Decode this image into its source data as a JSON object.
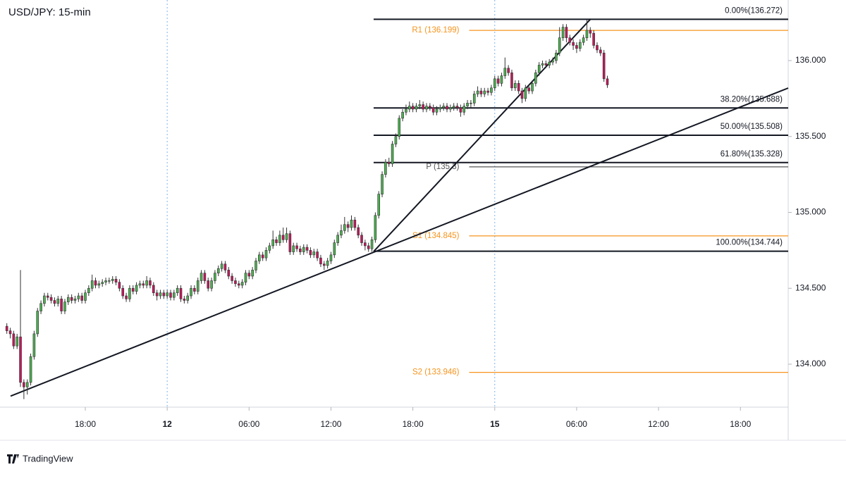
{
  "chart_data": {
    "type": "candlestick",
    "title": "USD/JPY: 15-min",
    "footer": "TradingView",
    "up_color": "#4caf50",
    "down_color": "#c2185b",
    "xlim": [
      -2,
      229
    ],
    "ylim": [
      133.717,
      136.399
    ],
    "xticks": [
      {
        "value": 23,
        "label": "18:00"
      },
      {
        "value": 47,
        "label": "12",
        "bold": true
      },
      {
        "value": 71,
        "label": "06:00"
      },
      {
        "value": 95,
        "label": "12:00"
      },
      {
        "value": 119,
        "label": "18:00"
      },
      {
        "value": 143,
        "label": "15",
        "bold": true
      },
      {
        "value": 167,
        "label": "06:00"
      },
      {
        "value": 191,
        "label": "12:00"
      },
      {
        "value": 215,
        "label": "18:00"
      }
    ],
    "yticks": [
      {
        "value": 134,
        "label": "134.000"
      },
      {
        "value": 134.5,
        "label": "134.500"
      },
      {
        "value": 135,
        "label": "135.000"
      },
      {
        "value": 135.5,
        "label": "135.500"
      },
      {
        "value": 136,
        "label": "136.000"
      }
    ],
    "ohlc": [
      [
        134.25,
        134.27,
        134.2,
        134.22
      ],
      [
        134.22,
        134.24,
        134.17,
        134.2
      ],
      [
        134.2,
        134.22,
        134.1,
        134.12
      ],
      [
        134.12,
        134.2,
        134.1,
        134.18
      ],
      [
        134.18,
        134.62,
        133.85,
        133.88
      ],
      [
        133.88,
        133.9,
        133.77,
        133.85
      ],
      [
        133.85,
        133.9,
        133.8,
        133.88
      ],
      [
        133.88,
        134.07,
        133.86,
        134.05
      ],
      [
        134.05,
        134.22,
        134.03,
        134.2
      ],
      [
        134.2,
        134.37,
        134.18,
        134.35
      ],
      [
        134.35,
        134.42,
        134.33,
        134.4
      ],
      [
        134.4,
        134.47,
        134.38,
        134.45
      ],
      [
        134.45,
        134.47,
        134.42,
        134.44
      ],
      [
        134.44,
        134.46,
        134.4,
        134.42
      ],
      [
        134.42,
        134.44,
        134.38,
        134.4
      ],
      [
        134.4,
        134.45,
        134.38,
        134.43
      ],
      [
        134.43,
        134.45,
        134.33,
        134.35
      ],
      [
        134.35,
        134.43,
        134.33,
        134.41
      ],
      [
        134.41,
        134.46,
        134.39,
        134.44
      ],
      [
        134.44,
        134.46,
        134.4,
        134.42
      ],
      [
        134.42,
        134.45,
        134.4,
        134.43
      ],
      [
        134.43,
        134.47,
        134.41,
        134.45
      ],
      [
        134.45,
        134.47,
        134.4,
        134.42
      ],
      [
        134.42,
        134.49,
        134.4,
        134.47
      ],
      [
        134.47,
        134.52,
        134.45,
        134.5
      ],
      [
        134.5,
        134.59,
        134.48,
        134.55
      ],
      [
        134.55,
        134.57,
        134.5,
        134.52
      ],
      [
        134.52,
        134.55,
        134.5,
        134.53
      ],
      [
        134.53,
        134.56,
        134.51,
        134.54
      ],
      [
        134.54,
        134.57,
        134.52,
        134.55
      ],
      [
        134.55,
        134.57,
        134.53,
        134.55
      ],
      [
        134.55,
        134.58,
        134.53,
        134.56
      ],
      [
        134.56,
        134.58,
        134.52,
        134.54
      ],
      [
        134.54,
        134.56,
        134.48,
        134.5
      ],
      [
        134.5,
        134.52,
        134.43,
        134.45
      ],
      [
        134.45,
        134.47,
        134.41,
        134.43
      ],
      [
        134.43,
        134.52,
        134.41,
        134.5
      ],
      [
        134.5,
        134.52,
        134.46,
        134.48
      ],
      [
        134.48,
        134.54,
        134.46,
        134.52
      ],
      [
        134.52,
        134.55,
        134.5,
        134.53
      ],
      [
        134.53,
        134.55,
        134.5,
        134.52
      ],
      [
        134.52,
        134.58,
        134.5,
        134.55
      ],
      [
        134.55,
        134.57,
        134.5,
        134.52
      ],
      [
        134.52,
        134.54,
        134.45,
        134.47
      ],
      [
        134.47,
        134.49,
        134.42,
        134.45
      ],
      [
        134.45,
        134.49,
        134.43,
        134.47
      ],
      [
        134.47,
        134.49,
        134.43,
        134.45
      ],
      [
        134.45,
        134.49,
        134.43,
        134.47
      ],
      [
        134.47,
        134.49,
        134.42,
        134.44
      ],
      [
        134.44,
        134.49,
        134.42,
        134.47
      ],
      [
        134.47,
        134.52,
        134.45,
        134.5
      ],
      [
        134.5,
        134.52,
        134.41,
        134.43
      ],
      [
        134.43,
        134.45,
        134.4,
        134.42
      ],
      [
        134.42,
        134.47,
        134.4,
        134.45
      ],
      [
        134.45,
        134.52,
        134.43,
        134.5
      ],
      [
        134.5,
        134.52,
        134.46,
        134.48
      ],
      [
        134.48,
        134.57,
        134.46,
        134.55
      ],
      [
        134.55,
        134.62,
        134.53,
        134.6
      ],
      [
        134.6,
        134.62,
        134.53,
        134.55
      ],
      [
        134.55,
        134.57,
        134.48,
        134.5
      ],
      [
        134.5,
        134.57,
        134.48,
        134.55
      ],
      [
        134.55,
        134.62,
        134.53,
        134.6
      ],
      [
        134.6,
        134.65,
        134.58,
        134.63
      ],
      [
        134.63,
        134.68,
        134.61,
        134.66
      ],
      [
        134.66,
        134.68,
        134.6,
        134.62
      ],
      [
        134.62,
        134.64,
        134.56,
        134.58
      ],
      [
        134.58,
        134.6,
        134.53,
        134.55
      ],
      [
        134.55,
        134.57,
        134.51,
        134.53
      ],
      [
        134.53,
        134.55,
        134.5,
        134.52
      ],
      [
        134.52,
        134.56,
        134.5,
        134.54
      ],
      [
        134.54,
        134.62,
        134.52,
        134.6
      ],
      [
        134.6,
        134.62,
        134.56,
        134.58
      ],
      [
        134.58,
        134.64,
        134.56,
        134.62
      ],
      [
        134.62,
        134.7,
        134.6,
        134.68
      ],
      [
        134.68,
        134.74,
        134.66,
        134.72
      ],
      [
        134.72,
        134.74,
        134.68,
        134.7
      ],
      [
        134.7,
        134.77,
        134.68,
        134.75
      ],
      [
        134.75,
        134.8,
        134.73,
        134.78
      ],
      [
        134.78,
        134.88,
        134.76,
        134.82
      ],
      [
        134.82,
        134.84,
        134.78,
        134.8
      ],
      [
        134.8,
        134.88,
        134.78,
        134.85
      ],
      [
        134.85,
        134.9,
        134.8,
        134.82
      ],
      [
        134.82,
        134.9,
        134.8,
        134.86
      ],
      [
        134.86,
        134.88,
        134.72,
        134.74
      ],
      [
        134.74,
        134.8,
        134.72,
        134.78
      ],
      [
        134.78,
        134.8,
        134.74,
        134.76
      ],
      [
        134.76,
        134.78,
        134.72,
        134.74
      ],
      [
        134.74,
        134.79,
        134.72,
        134.77
      ],
      [
        134.77,
        134.79,
        134.73,
        134.75
      ],
      [
        134.75,
        134.77,
        134.7,
        134.72
      ],
      [
        134.72,
        134.76,
        134.7,
        134.74
      ],
      [
        134.74,
        134.76,
        134.68,
        134.7
      ],
      [
        134.7,
        134.72,
        134.64,
        134.66
      ],
      [
        134.66,
        134.68,
        134.62,
        134.65
      ],
      [
        134.65,
        134.7,
        134.63,
        134.68
      ],
      [
        134.68,
        134.74,
        134.66,
        134.72
      ],
      [
        134.72,
        134.82,
        134.7,
        134.8
      ],
      [
        134.8,
        134.87,
        134.78,
        134.85
      ],
      [
        134.85,
        134.92,
        134.83,
        134.88
      ],
      [
        134.88,
        134.97,
        134.86,
        134.92
      ],
      [
        134.92,
        134.94,
        134.87,
        134.9
      ],
      [
        134.9,
        134.98,
        134.88,
        134.95
      ],
      [
        134.95,
        134.97,
        134.88,
        134.9
      ],
      [
        134.9,
        134.92,
        134.83,
        134.85
      ],
      [
        134.85,
        134.87,
        134.78,
        134.8
      ],
      [
        134.8,
        134.82,
        134.75,
        134.78
      ],
      [
        134.78,
        134.8,
        134.74,
        134.76
      ],
      [
        134.76,
        134.84,
        134.74,
        134.82
      ],
      [
        134.82,
        135.0,
        134.8,
        134.98
      ],
      [
        134.98,
        135.14,
        134.96,
        135.12
      ],
      [
        135.12,
        135.27,
        135.1,
        135.25
      ],
      [
        135.25,
        135.35,
        135.23,
        135.33
      ],
      [
        135.33,
        135.36,
        135.3,
        135.32
      ],
      [
        135.32,
        135.47,
        135.3,
        135.45
      ],
      [
        135.45,
        135.52,
        135.43,
        135.5
      ],
      [
        135.5,
        135.64,
        135.48,
        135.62
      ],
      [
        135.62,
        135.68,
        135.6,
        135.66
      ],
      [
        135.66,
        135.71,
        135.64,
        135.68
      ],
      [
        135.68,
        135.73,
        135.66,
        135.7
      ],
      [
        135.7,
        135.72,
        135.66,
        135.68
      ],
      [
        135.68,
        135.72,
        135.66,
        135.7
      ],
      [
        135.7,
        135.74,
        135.68,
        135.71
      ],
      [
        135.71,
        135.73,
        135.66,
        135.68
      ],
      [
        135.68,
        135.72,
        135.66,
        135.7
      ],
      [
        135.7,
        135.72,
        135.67,
        135.69
      ],
      [
        135.69,
        135.71,
        135.64,
        135.66
      ],
      [
        135.66,
        135.7,
        135.64,
        135.68
      ],
      [
        135.68,
        135.71,
        135.66,
        135.69
      ],
      [
        135.69,
        135.72,
        135.67,
        135.7
      ],
      [
        135.7,
        135.72,
        135.66,
        135.68
      ],
      [
        135.68,
        135.71,
        135.66,
        135.69
      ],
      [
        135.69,
        135.72,
        135.67,
        135.7
      ],
      [
        135.7,
        135.72,
        135.67,
        135.69
      ],
      [
        135.69,
        135.71,
        135.63,
        135.66
      ],
      [
        135.66,
        135.72,
        135.64,
        135.7
      ],
      [
        135.7,
        135.74,
        135.68,
        135.72
      ],
      [
        135.72,
        135.74,
        135.69,
        135.72
      ],
      [
        135.72,
        135.8,
        135.7,
        135.78
      ],
      [
        135.78,
        135.83,
        135.76,
        135.8
      ],
      [
        135.8,
        135.82,
        135.76,
        135.78
      ],
      [
        135.78,
        135.82,
        135.76,
        135.8
      ],
      [
        135.8,
        135.82,
        135.77,
        135.79
      ],
      [
        135.79,
        135.84,
        135.77,
        135.82
      ],
      [
        135.82,
        135.9,
        135.8,
        135.88
      ],
      [
        135.88,
        135.9,
        135.83,
        135.85
      ],
      [
        135.85,
        135.92,
        135.83,
        135.9
      ],
      [
        135.9,
        136.02,
        135.88,
        135.95
      ],
      [
        135.95,
        135.97,
        135.9,
        135.92
      ],
      [
        135.92,
        135.94,
        135.8,
        135.82
      ],
      [
        135.82,
        135.87,
        135.8,
        135.85
      ],
      [
        135.85,
        135.87,
        135.78,
        135.8
      ],
      [
        135.8,
        135.82,
        135.72,
        135.75
      ],
      [
        135.75,
        135.84,
        135.73,
        135.82
      ],
      [
        135.82,
        135.84,
        135.78,
        135.8
      ],
      [
        135.8,
        135.87,
        135.78,
        135.85
      ],
      [
        135.85,
        135.94,
        135.83,
        135.92
      ],
      [
        135.92,
        135.99,
        135.9,
        135.97
      ],
      [
        135.97,
        136.0,
        135.95,
        135.98
      ],
      [
        135.98,
        136.0,
        135.95,
        135.97
      ],
      [
        135.97,
        136.01,
        135.95,
        135.99
      ],
      [
        135.99,
        136.02,
        135.97,
        136.0
      ],
      [
        136.0,
        136.07,
        135.98,
        136.05
      ],
      [
        136.05,
        136.22,
        136.03,
        136.15
      ],
      [
        136.15,
        136.24,
        136.13,
        136.22
      ],
      [
        136.22,
        136.24,
        136.12,
        136.15
      ],
      [
        136.15,
        136.17,
        136.1,
        136.12
      ],
      [
        136.12,
        136.14,
        136.07,
        136.1
      ],
      [
        136.1,
        136.12,
        136.05,
        136.08
      ],
      [
        136.08,
        136.14,
        136.06,
        136.12
      ],
      [
        136.12,
        136.17,
        136.1,
        136.15
      ],
      [
        136.15,
        136.27,
        136.13,
        136.2
      ],
      [
        136.2,
        136.22,
        136.15,
        136.18
      ],
      [
        136.18,
        136.2,
        136.08,
        136.1
      ],
      [
        136.1,
        136.12,
        136.05,
        136.07
      ],
      [
        136.07,
        136.09,
        136.03,
        136.05
      ],
      [
        136.05,
        136.07,
        135.86,
        135.88
      ],
      [
        135.88,
        135.9,
        135.82,
        135.84
      ]
    ],
    "fib": {
      "x_start": 107.5,
      "color": "#131722",
      "levels": [
        {
          "label": "0.00%(136.272)",
          "value": 136.272
        },
        {
          "label": "38.20%(135.688)",
          "value": 135.688
        },
        {
          "label": "50.00%(135.508)",
          "value": 135.508
        },
        {
          "label": "61.80%(135.328)",
          "value": 135.328
        },
        {
          "label": "100.00%(134.744)",
          "value": 134.744
        }
      ]
    },
    "pivots": {
      "x_start": 135.5,
      "levels": [
        {
          "label": "R1 (136.199)",
          "value": 136.199,
          "color": "#f7941d"
        },
        {
          "label": "P (135.3)",
          "value": 135.3,
          "color": "#555555"
        },
        {
          "label": "S1 (134.845)",
          "value": 134.845,
          "color": "#f7941d"
        },
        {
          "label": "S2 (133.946)",
          "value": 133.946,
          "color": "#f7941d"
        }
      ]
    },
    "trendlines": [
      {
        "x": [
          1.1,
          229
        ],
        "y": [
          133.79,
          135.819
        ]
      },
      {
        "x": [
          107.5,
          171.1
        ],
        "y": [
          134.742,
          136.274
        ]
      }
    ]
  }
}
